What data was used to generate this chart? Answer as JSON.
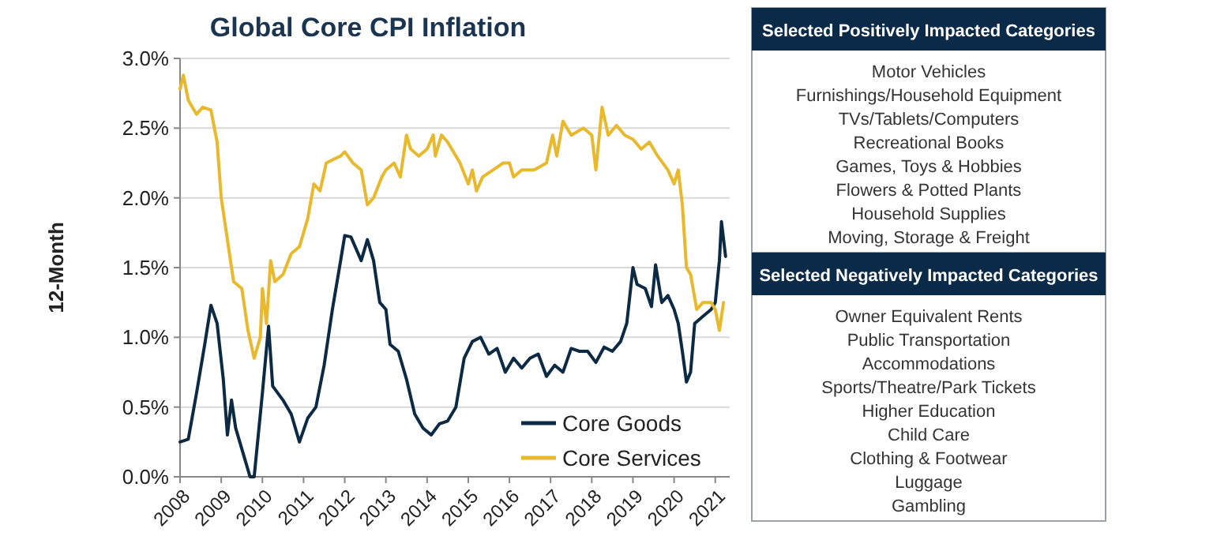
{
  "chart_data": [
    {
      "type": "line",
      "title": "Global Core CPI Inflation",
      "ylabel": "12-Month",
      "xlim": [
        2008,
        2021.35
      ],
      "xticks": [
        2008,
        2009,
        2010,
        2011,
        2012,
        2013,
        2014,
        2015,
        2016,
        2017,
        2018,
        2019,
        2020,
        2021
      ],
      "ylim": [
        0,
        3
      ],
      "yticks": [
        {
          "value": 0,
          "label": "0.0%"
        },
        {
          "value": 0.5,
          "label": "0.5%"
        },
        {
          "value": 1,
          "label": "1.0%"
        },
        {
          "value": 1.5,
          "label": "1.5%"
        },
        {
          "value": 2,
          "label": "2.0%"
        },
        {
          "value": 2.5,
          "label": "2.5%"
        },
        {
          "value": 3,
          "label": "3.0%"
        }
      ],
      "grid": "y",
      "legend": "bottom right",
      "series": [
        {
          "name": "Core Goods",
          "color": "#0d2a45",
          "x": [
            2008,
            2008.2,
            2008.4,
            2008.6,
            2008.75,
            2008.9,
            2009.05,
            2009.15,
            2009.25,
            2009.35,
            2009.5,
            2009.7,
            2009.8,
            2010,
            2010.15,
            2010.25,
            2010.5,
            2010.7,
            2010.9,
            2011.1,
            2011.3,
            2011.5,
            2011.7,
            2011.9,
            2012,
            2012.15,
            2012.4,
            2012.55,
            2012.7,
            2012.85,
            2013,
            2013.1,
            2013.3,
            2013.5,
            2013.7,
            2013.9,
            2014.1,
            2014.3,
            2014.5,
            2014.7,
            2014.9,
            2015.1,
            2015.3,
            2015.5,
            2015.7,
            2015.9,
            2016.1,
            2016.3,
            2016.5,
            2016.7,
            2016.9,
            2017.1,
            2017.3,
            2017.5,
            2017.7,
            2017.9,
            2018.1,
            2018.3,
            2018.5,
            2018.7,
            2018.85,
            2019,
            2019.1,
            2019.3,
            2019.45,
            2019.55,
            2019.7,
            2019.85,
            2020,
            2020.1,
            2020.2,
            2020.3,
            2020.4,
            2020.5,
            2020.7,
            2020.9,
            2021,
            2021.1,
            2021.15,
            2021.25
          ],
          "values": [
            0.25,
            0.27,
            0.6,
            0.95,
            1.23,
            1.1,
            0.7,
            0.3,
            0.55,
            0.35,
            0.2,
            0,
            0,
            0.6,
            1.08,
            0.65,
            0.55,
            0.45,
            0.25,
            0.42,
            0.5,
            0.8,
            1.2,
            1.55,
            1.73,
            1.72,
            1.55,
            1.7,
            1.55,
            1.25,
            1.2,
            0.95,
            0.9,
            0.7,
            0.45,
            0.35,
            0.3,
            0.38,
            0.4,
            0.5,
            0.85,
            0.97,
            1,
            0.88,
            0.92,
            0.75,
            0.85,
            0.78,
            0.85,
            0.88,
            0.72,
            0.8,
            0.75,
            0.92,
            0.9,
            0.9,
            0.82,
            0.93,
            0.9,
            0.97,
            1.1,
            1.5,
            1.38,
            1.35,
            1.22,
            1.52,
            1.25,
            1.3,
            1.2,
            1.1,
            0.9,
            0.68,
            0.75,
            1.1,
            1.15,
            1.2,
            1.25,
            1.55,
            1.83,
            1.58
          ]
        },
        {
          "name": "Core Services",
          "color": "#e8b92d",
          "x": [
            2008,
            2008.08,
            2008.2,
            2008.4,
            2008.55,
            2008.75,
            2008.9,
            2009,
            2009.15,
            2009.3,
            2009.5,
            2009.65,
            2009.8,
            2009.95,
            2010,
            2010.1,
            2010.2,
            2010.3,
            2010.5,
            2010.7,
            2010.9,
            2011.1,
            2011.25,
            2011.4,
            2011.55,
            2011.75,
            2011.9,
            2012,
            2012.2,
            2012.4,
            2012.55,
            2012.7,
            2012.9,
            2013,
            2013.2,
            2013.35,
            2013.5,
            2013.6,
            2013.8,
            2014,
            2014.15,
            2014.2,
            2014.35,
            2014.5,
            2014.8,
            2015,
            2015.1,
            2015.2,
            2015.35,
            2015.6,
            2015.85,
            2016,
            2016.1,
            2016.3,
            2016.6,
            2016.9,
            2017.05,
            2017.15,
            2017.3,
            2017.5,
            2017.8,
            2018,
            2018.1,
            2018.25,
            2018.4,
            2018.6,
            2018.8,
            2019,
            2019.2,
            2019.4,
            2019.6,
            2019.85,
            2020,
            2020.1,
            2020.2,
            2020.3,
            2020.4,
            2020.55,
            2020.7,
            2020.9,
            2021,
            2021.1,
            2021.2
          ],
          "values": [
            2.78,
            2.88,
            2.7,
            2.6,
            2.65,
            2.63,
            2.4,
            2,
            1.7,
            1.4,
            1.35,
            1.05,
            0.85,
            1,
            1.35,
            1.1,
            1.55,
            1.4,
            1.45,
            1.6,
            1.65,
            1.85,
            2.1,
            2.05,
            2.25,
            2.28,
            2.3,
            2.33,
            2.25,
            2.2,
            1.95,
            2,
            2.15,
            2.2,
            2.25,
            2.15,
            2.45,
            2.35,
            2.3,
            2.35,
            2.45,
            2.3,
            2.45,
            2.4,
            2.25,
            2.1,
            2.2,
            2.05,
            2.15,
            2.2,
            2.25,
            2.25,
            2.15,
            2.2,
            2.2,
            2.25,
            2.45,
            2.3,
            2.55,
            2.45,
            2.5,
            2.45,
            2.2,
            2.65,
            2.45,
            2.52,
            2.45,
            2.42,
            2.35,
            2.4,
            2.3,
            2.2,
            2.1,
            2.2,
            1.95,
            1.5,
            1.45,
            1.2,
            1.25,
            1.25,
            1.2,
            1.05,
            1.25
          ]
        }
      ]
    },
    {
      "type": "other",
      "title": "Selected Positively Impacted Categories",
      "annotations": [
        "Motor Vehicles",
        "Furnishings/Household Equipment",
        "TVs/Tablets/Computers",
        "Recreational Books",
        "Games, Toys & Hobbies",
        "Flowers & Potted Plants",
        "Household Supplies",
        "Moving, Storage & Freight"
      ]
    },
    {
      "type": "other",
      "title": "Selected Negatively Impacted Categories",
      "annotations": [
        "Owner Equivalent Rents",
        "Public Transportation",
        "Accommodations",
        "Sports/Theatre/Park Tickets",
        "Higher Education",
        "Child Care",
        "Clothing & Footwear",
        "Luggage",
        "Gambling"
      ]
    }
  ]
}
